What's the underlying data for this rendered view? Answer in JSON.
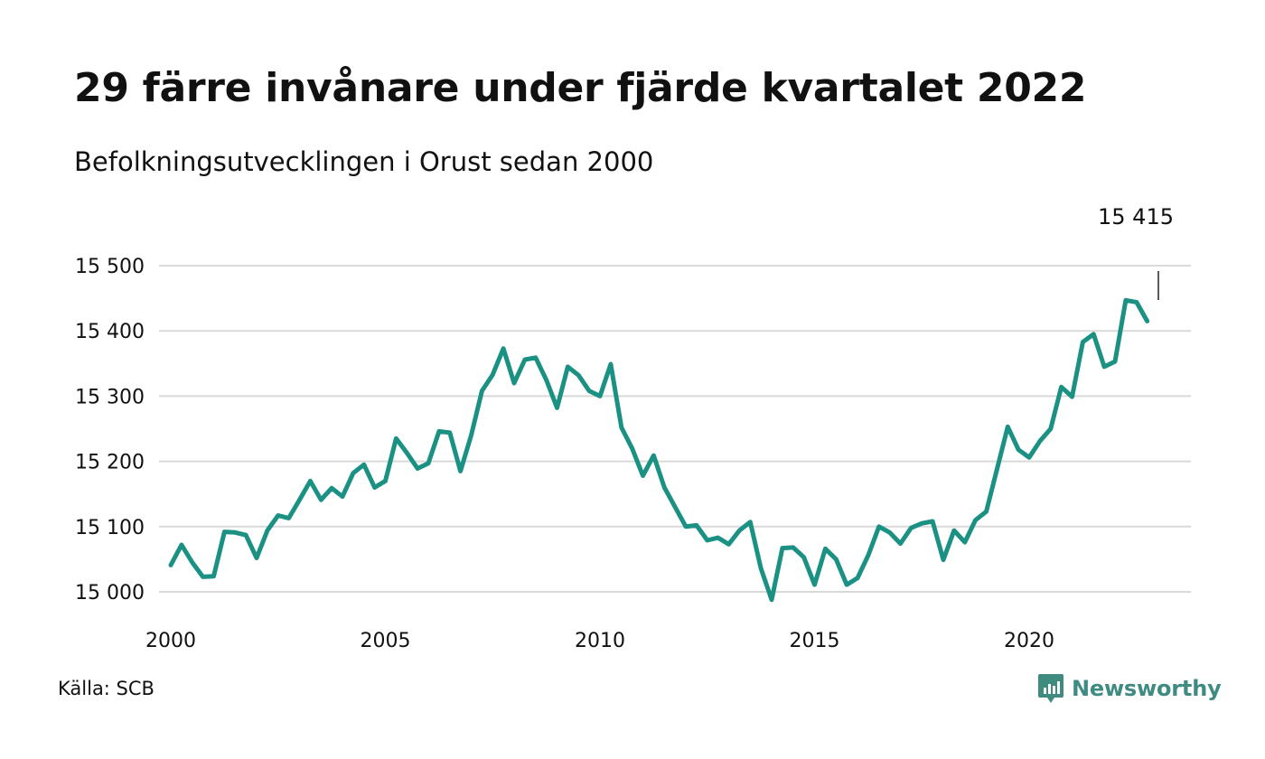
{
  "header": {
    "title": "29 färre invånare under fjärde kvartalet 2022",
    "subtitle": "Befolkningsutvecklingen i Orust sedan 2000"
  },
  "footer": {
    "source": "Källa: SCB",
    "brand": "Newsworthy",
    "brand_icon": "newsworthy-logo-icon",
    "brand_color": "#3f8b82"
  },
  "colors": {
    "line": "#1a9183",
    "grid": "#d9d9d9",
    "text": "#111111"
  },
  "chart_data": {
    "type": "line",
    "title": "29 färre invånare under fjärde kvartalet 2022",
    "subtitle": "Befolkningsutvecklingen i Orust sedan 2000",
    "x_start": "2000-Q1",
    "x_ticks": [
      "2000",
      "2005",
      "2010",
      "2015",
      "2020"
    ],
    "y_ticks": [
      "15 000",
      "15 100",
      "15 200",
      "15 300",
      "15 400",
      "15 500"
    ],
    "ylim": [
      15000,
      15500
    ],
    "grid": true,
    "annotation": {
      "label": "15 415",
      "period": "2022-Q4",
      "value": 15415
    },
    "series": [
      {
        "values": [
          15041,
          15072,
          15045,
          15023,
          15024,
          15092,
          15091,
          15087,
          15052,
          15094,
          15117,
          15113,
          15141,
          15170,
          15141,
          15159,
          15146,
          15182,
          15195,
          15160,
          15170,
          15235,
          15213,
          15189,
          15197,
          15246,
          15244,
          15185,
          15240,
          15308,
          15333,
          15373,
          15320,
          15356,
          15359,
          15325,
          15282,
          15345,
          15332,
          15308,
          15300,
          15349,
          15252,
          15220,
          15178,
          15209,
          15160,
          15130,
          15100,
          15102,
          15079,
          15083,
          15073,
          15094,
          15107,
          15036,
          14988,
          15067,
          15068,
          15053,
          15011,
          15066,
          15050,
          15011,
          15021,
          15056,
          15100,
          15091,
          15074,
          15098,
          15105,
          15108,
          15049,
          15094,
          15076,
          15110,
          15123,
          15188,
          15253,
          15218,
          15206,
          15231,
          15250,
          15314,
          15299,
          15383,
          15395,
          15345,
          15353,
          15447,
          15444,
          15415
        ]
      }
    ]
  }
}
